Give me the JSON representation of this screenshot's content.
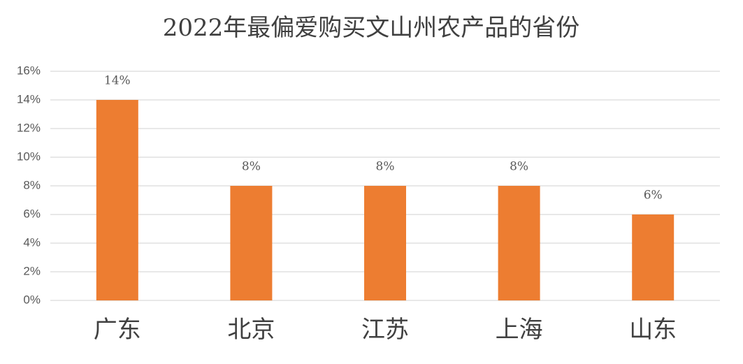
{
  "chart_data": {
    "type": "bar",
    "title": "2022年最偏爱购买文山州农产品的省份",
    "categories": [
      "广东",
      "北京",
      "江苏",
      "上海",
      "山东"
    ],
    "values": [
      14,
      8,
      8,
      8,
      6
    ],
    "value_labels": [
      "14%",
      "8%",
      "8%",
      "8%",
      "6%"
    ],
    "color": "#ed7d31",
    "ylim": [
      0,
      16
    ],
    "yticks": [
      {
        "value": 0,
        "label": "0%"
      },
      {
        "value": 2,
        "label": "2%"
      },
      {
        "value": 4,
        "label": "4%"
      },
      {
        "value": 6,
        "label": "6%"
      },
      {
        "value": 8,
        "label": "8%"
      },
      {
        "value": 10,
        "label": "10%"
      },
      {
        "value": 12,
        "label": "12%"
      },
      {
        "value": 14,
        "label": "14%"
      },
      {
        "value": 16,
        "label": "16%"
      }
    ],
    "grid": true
  }
}
